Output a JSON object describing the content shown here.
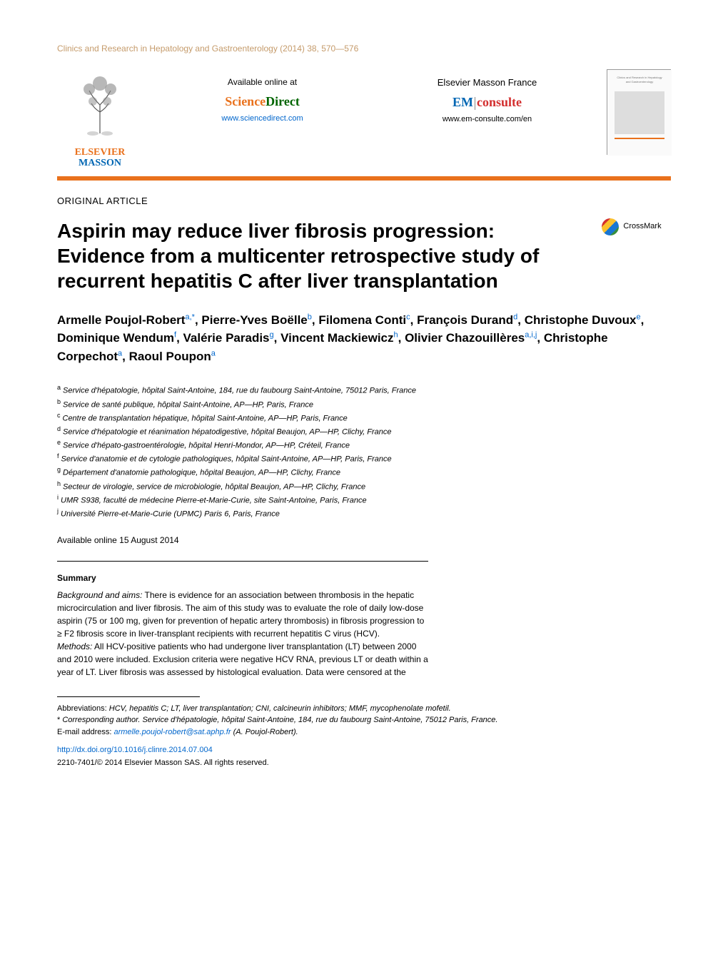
{
  "journal_header": "Clinics and Research in Hepatology and Gastroenterology (2014) 38, 570—576",
  "logo": {
    "elsevier": "ELSEVIER",
    "masson": "MASSON"
  },
  "availability": {
    "label": "Available online at",
    "sd_science": "Science",
    "sd_direct": "Direct",
    "sd_url": "www.sciencedirect.com"
  },
  "masson_france": {
    "label": "Elsevier Masson France",
    "em": "EM",
    "consulte": "consulte",
    "url": "www.em-consulte.com/en"
  },
  "article_type": "ORIGINAL ARTICLE",
  "title": "Aspirin may reduce liver fibrosis progression: Evidence from a multicenter retrospective study of recurrent hepatitis C after liver transplantation",
  "crossmark_label": "CrossMark",
  "authors_html": "Armelle Poujol-Robert<sup>a,*</sup>, Pierre-Yves Boëlle<sup>b</sup>, Filomena Conti<sup>c</sup>, François Durand<sup>d</sup>, Christophe Duvoux<sup>e</sup>, Dominique Wendum<sup>f</sup>, Valérie Paradis<sup>g</sup>, Vincent Mackiewicz<sup>h</sup>, Olivier Chazouillères<sup>a,i,j</sup>, Christophe Corpechot<sup>a</sup>, Raoul Poupon<sup>a</sup>",
  "affiliations": [
    {
      "key": "a",
      "text": "Service d'hépatologie, hôpital Saint-Antoine, 184, rue du faubourg Saint-Antoine, 75012 Paris, France"
    },
    {
      "key": "b",
      "text": "Service de santé publique, hôpital Saint-Antoine, AP—HP, Paris, France"
    },
    {
      "key": "c",
      "text": "Centre de transplantation hépatique, hôpital Saint-Antoine, AP—HP, Paris, France"
    },
    {
      "key": "d",
      "text": "Service d'hépatologie et réanimation hépatodigestive, hôpital Beaujon, AP—HP, Clichy, France"
    },
    {
      "key": "e",
      "text": "Service d'hépato-gastroentérologie, hôpital Henri-Mondor, AP—HP, Créteil, France"
    },
    {
      "key": "f",
      "text": "Service d'anatomie et de cytologie pathologiques, hôpital Saint-Antoine, AP—HP, Paris, France"
    },
    {
      "key": "g",
      "text": "Département d'anatomie pathologique, hôpital Beaujon, AP—HP, Clichy, France"
    },
    {
      "key": "h",
      "text": "Secteur de virologie, service de microbiologie, hôpital Beaujon, AP—HP, Clichy, France"
    },
    {
      "key": "i",
      "text": "UMR S938, faculté de médecine Pierre-et-Marie-Curie, site Saint-Antoine, Paris, France"
    },
    {
      "key": "j",
      "text": "Université Pierre-et-Marie-Curie (UPMC) Paris 6, Paris, France"
    }
  ],
  "online_date": "Available online 15 August 2014",
  "summary": {
    "heading": "Summary",
    "background_label": "Background and aims:",
    "background": " There is evidence for an association between thrombosis in the hepatic microcirculation and liver fibrosis. The aim of this study was to evaluate the role of daily low-dose aspirin (75 or 100 mg, given for prevention of hepatic artery thrombosis) in fibrosis progression to ≥ F2 fibrosis score in liver-transplant recipients with recurrent hepatitis C virus (HCV).",
    "methods_label": "Methods:",
    "methods": " All HCV-positive patients who had undergone liver transplantation (LT) between 2000 and 2010 were included. Exclusion criteria were negative HCV RNA, previous LT or death within a year of LT. Liver fibrosis was assessed by histological evaluation. Data were censored at the"
  },
  "footnotes": {
    "abbrev_label": "Abbreviations:",
    "abbrev_text": " HCV, hepatitis C; LT, liver transplantation; CNI, calcineurin inhibitors; MMF, mycophenolate mofetil.",
    "corr_marker": "*",
    "corr_text": " Corresponding author. Service d'hépatologie, hôpital Saint-Antoine, 184, rue du faubourg Saint-Antoine, 75012 Paris, France.",
    "email_label": "E-mail address:",
    "email": "armelle.poujol-robert@sat.aphp.fr",
    "email_suffix": " (A. Poujol-Robert)."
  },
  "doi": "http://dx.doi.org/10.1016/j.clinre.2014.07.004",
  "copyright": "2210-7401/© 2014 Elsevier Masson SAS. All rights reserved.",
  "colors": {
    "orange": "#e9711c",
    "blue": "#0066b3",
    "link": "#0066cc",
    "header_tan": "#c59b6b"
  }
}
